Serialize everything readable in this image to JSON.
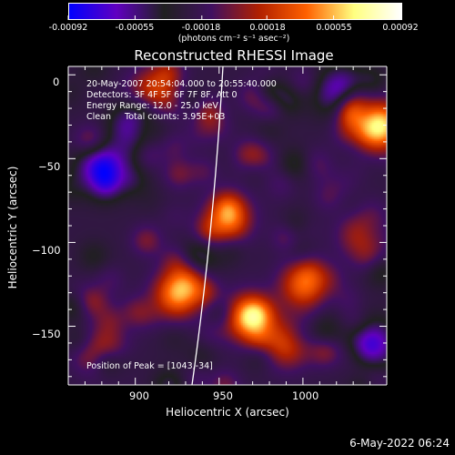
{
  "colorbar": {
    "tick_labels": [
      "-0.00092",
      "-0.00055",
      "-0.00018",
      "0.00018",
      "0.00055",
      "0.00092"
    ],
    "tick_values": [
      -0.00092,
      -0.00055,
      -0.00018,
      0.00018,
      0.00055,
      0.00092
    ],
    "unit": "(photons cm⁻² s⁻¹ asec⁻²)",
    "colors": [
      "#0000ff",
      "#6000c0",
      "#202020",
      "#401060",
      "#b02000",
      "#ff6000",
      "#ffff80",
      "#ffffff"
    ]
  },
  "chart_data": {
    "type": "heatmap",
    "title": "Reconstructed RHESSI Image",
    "xlabel": "Heliocentric X (arcsec)",
    "ylabel": "Heliocentric Y (arcsec)",
    "xlim": [
      860,
      1050
    ],
    "ylim": [
      -185,
      5
    ],
    "xticks": [
      900,
      950,
      1000
    ],
    "yticks": [
      0,
      -50,
      -100,
      -150
    ],
    "colormap_range": [
      -0.00092,
      0.00092
    ],
    "hotspots": [
      {
        "x": 967,
        "y": -145,
        "value": 0.0008
      },
      {
        "x": 925,
        "y": -130,
        "value": 0.00075
      },
      {
        "x": 1045,
        "y": -30,
        "value": 0.00092
      },
      {
        "x": 1000,
        "y": -125,
        "value": 0.0006
      },
      {
        "x": 910,
        "y": -10,
        "value": 0.0005
      },
      {
        "x": 955,
        "y": -85,
        "value": 0.0005
      },
      {
        "x": 880,
        "y": -165,
        "value": 0.00045
      },
      {
        "x": 990,
        "y": -160,
        "value": 0.0005
      },
      {
        "x": 1035,
        "y": -95,
        "value": 0.0004
      }
    ],
    "coldspots": [
      {
        "x": 880,
        "y": -55,
        "value": -0.0006
      },
      {
        "x": 900,
        "y": -30,
        "value": -0.0005
      },
      {
        "x": 1040,
        "y": -160,
        "value": -0.0005
      },
      {
        "x": 1020,
        "y": -10,
        "value": -0.0004
      }
    ],
    "info": {
      "time": "20-May-2007 20:54:04.000 to 20:55:40.000",
      "detectors": "Detectors: 3F 4F 5F 6F 7F 8F, Att 0",
      "energy": "Energy Range: 12.0 - 25.0 keV",
      "algo": "Clean     Total counts: 3.95E+03",
      "peak": "Position of Peak = [1043,-34]"
    }
  },
  "footer": {
    "date": "6-May-2022 06:24"
  }
}
